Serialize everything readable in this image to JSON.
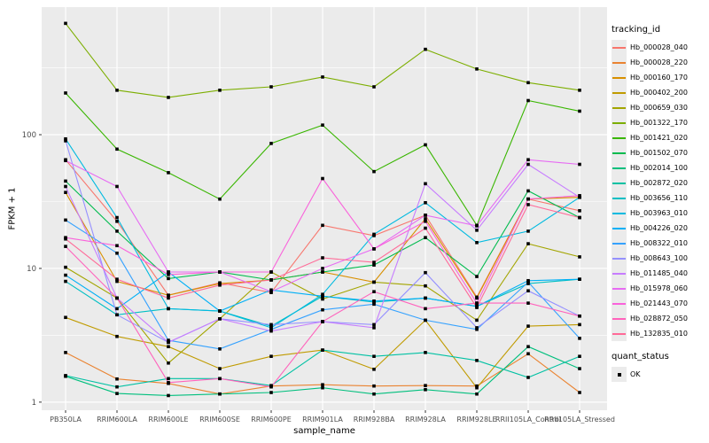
{
  "chart_data": {
    "type": "line",
    "title": "",
    "xlabel": "sample_name",
    "ylabel": "FPKM + 1",
    "y_scale": "log10",
    "y_ticks": [
      1,
      10,
      100
    ],
    "y_minor_ticks": [
      3.162,
      31.62,
      316.2
    ],
    "ylim": [
      0.87,
      900
    ],
    "grid": "on",
    "legend_position": "right",
    "categories": [
      "PB350LA",
      "RRIM600LA",
      "RRIM600LE",
      "RRIM600SE",
      "RRIM600PE",
      "RRIM901LA",
      "RRIM928BA",
      "RRIM928LA",
      "RRIM928LE",
      "RRII105LA_Control",
      "RRII105LA_Stressed"
    ],
    "series": [
      {
        "tracking_id": "Hb_000028_040",
        "color": "#F8766D",
        "values": [
          65,
          22.5,
          6.3,
          7.8,
          6.6,
          21,
          17.6,
          25,
          6.1,
          33,
          27
        ]
      },
      {
        "tracking_id": "Hb_000028_220",
        "color": "#EA8331",
        "values": [
          2.35,
          1.49,
          1.38,
          1.15,
          1.32,
          1.35,
          1.32,
          1.33,
          1.32,
          2.3,
          1.18
        ]
      },
      {
        "tracking_id": "Hb_000160_170",
        "color": "#D89000",
        "values": [
          37,
          8.0,
          6.3,
          7.7,
          8.2,
          9.4,
          7.9,
          23.5,
          6.0,
          33,
          34
        ]
      },
      {
        "tracking_id": "Hb_000402_200",
        "color": "#C09B00",
        "values": [
          4.3,
          3.1,
          2.6,
          1.78,
          2.2,
          2.45,
          1.76,
          4.1,
          1.28,
          3.7,
          3.8
        ]
      },
      {
        "tracking_id": "Hb_000659_030",
        "color": "#A3A500",
        "values": [
          10.2,
          6.0,
          1.96,
          4.2,
          9.4,
          5.9,
          7.9,
          7.4,
          4.1,
          15.3,
          12.2
        ]
      },
      {
        "tracking_id": "Hb_001322_170",
        "color": "#7CAE00",
        "values": [
          680,
          215,
          190,
          215,
          228,
          270,
          228,
          435,
          310,
          245,
          215
        ]
      },
      {
        "tracking_id": "Hb_001421_020",
        "color": "#39B600",
        "values": [
          205,
          78,
          52,
          33,
          86,
          118,
          53,
          84,
          21,
          180,
          150
        ]
      },
      {
        "tracking_id": "Hb_001502_070",
        "color": "#00BB4E",
        "values": [
          45,
          19,
          8.4,
          9.4,
          8.2,
          9.4,
          10.6,
          17,
          8.7,
          38,
          24
        ]
      },
      {
        "tracking_id": "Hb_002014_100",
        "color": "#00BF7D",
        "values": [
          1.56,
          1.16,
          1.12,
          1.15,
          1.18,
          1.28,
          1.15,
          1.24,
          1.15,
          2.6,
          1.78
        ]
      },
      {
        "tracking_id": "Hb_002872_020",
        "color": "#00C1A3",
        "values": [
          1.58,
          1.3,
          1.5,
          1.5,
          1.33,
          2.45,
          2.2,
          2.35,
          2.05,
          1.53,
          2.2
        ]
      },
      {
        "tracking_id": "Hb_003656_110",
        "color": "#00BFC4",
        "values": [
          8.0,
          4.5,
          5.0,
          4.8,
          3.7,
          6.2,
          5.6,
          6.0,
          5.2,
          7.7,
          8.3
        ]
      },
      {
        "tracking_id": "Hb_003963_010",
        "color": "#00BAE0",
        "values": [
          93,
          24,
          5.0,
          4.8,
          3.6,
          6.4,
          18,
          31,
          15.6,
          19,
          34
        ]
      },
      {
        "tracking_id": "Hb_004226_020",
        "color": "#00B0F6",
        "values": [
          8.9,
          5.0,
          9.4,
          4.8,
          6.9,
          6.2,
          5.7,
          6.0,
          5.2,
          8.1,
          8.3
        ]
      },
      {
        "tracking_id": "Hb_008322_010",
        "color": "#35A2FF",
        "values": [
          23,
          13,
          2.9,
          2.5,
          3.5,
          4.9,
          5.4,
          4.1,
          3.5,
          7.9,
          3.0
        ]
      },
      {
        "tracking_id": "Hb_008643_100",
        "color": "#9590FF",
        "values": [
          90,
          4.5,
          2.8,
          4.2,
          3.8,
          4.0,
          3.8,
          9.3,
          3.6,
          6.8,
          4.4
        ]
      },
      {
        "tracking_id": "Hb_011485_040",
        "color": "#C77CFF",
        "values": [
          41,
          6.0,
          2.8,
          4.2,
          3.4,
          4.0,
          3.6,
          43,
          19.3,
          60,
          34
        ]
      },
      {
        "tracking_id": "Hb_015978_060",
        "color": "#E76BF3",
        "values": [
          64,
          41,
          9.4,
          9.4,
          6.7,
          10,
          14,
          25,
          20.8,
          65,
          60
        ]
      },
      {
        "tracking_id": "Hb_021443_070",
        "color": "#FA62DB",
        "values": [
          17,
          14.8,
          9.0,
          9.4,
          9.4,
          47,
          14,
          22.5,
          5.5,
          33,
          35
        ]
      },
      {
        "tracking_id": "Hb_028872_050",
        "color": "#FF62BC",
        "values": [
          14.6,
          6.0,
          1.4,
          1.5,
          1.3,
          4.0,
          6.7,
          5.0,
          5.5,
          5.5,
          4.4
        ]
      },
      {
        "tracking_id": "Hb_132835_010",
        "color": "#FF6A98",
        "values": [
          16.6,
          8.3,
          6.0,
          7.5,
          8.2,
          12,
          11.1,
          20,
          5.1,
          30,
          24
        ]
      }
    ],
    "quant_status": {
      "label": "OK",
      "marker": "filled-square",
      "color": "#000000"
    }
  },
  "axes": {
    "x_title": "sample_name",
    "y_title": "FPKM + 1",
    "y_tick_labels": [
      "1",
      "10",
      "100"
    ]
  },
  "legend": {
    "tracking_title": "tracking_id",
    "quant_title": "quant_status",
    "quant_ok_label": "OK"
  },
  "style": {
    "panel_bg": "#EBEBEB",
    "grid_color": "#FFFFFF",
    "tick_text_color": "#4D4D4D",
    "point_color": "#000000"
  }
}
